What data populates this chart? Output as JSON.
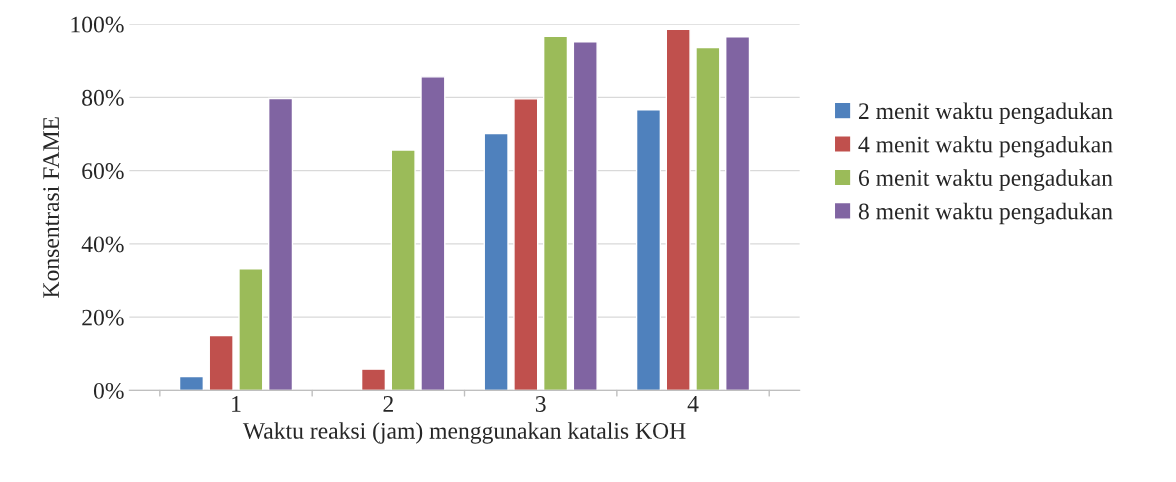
{
  "chart_data": {
    "type": "bar",
    "xlabel": "Waktu reaksi (jam) menggunakan katalis KOH",
    "ylabel": "Konsentrasi FAME",
    "categories": [
      "1",
      "2",
      "3",
      "4"
    ],
    "series": [
      {
        "name": "2 menit waktu pengadukan",
        "color": "#4f81bd",
        "values": [
          3.8,
          null,
          70.1,
          76.6
        ]
      },
      {
        "name": "4 menit waktu pengadukan",
        "color": "#c0504d",
        "values": [
          15,
          5.8,
          79.6,
          98.6
        ]
      },
      {
        "name": "6 menit waktu pengadukan",
        "color": "#9bbb59",
        "values": [
          33.2,
          65.6,
          96.7,
          93.6
        ]
      },
      {
        "name": "8 menit waktu pengadukan",
        "color": "#8064a2",
        "values": [
          79.7,
          85.6,
          95.2,
          96.5
        ]
      }
    ],
    "ylim": [
      0,
      100
    ],
    "yticks": [
      {
        "value": 0,
        "label": "0%"
      },
      {
        "value": 20,
        "label": "20%"
      },
      {
        "value": 40,
        "label": "40%"
      },
      {
        "value": 60,
        "label": "60%"
      },
      {
        "value": 80,
        "label": "80%"
      },
      {
        "value": 100,
        "label": "100%"
      }
    ],
    "grid": "y",
    "legend": "right"
  }
}
